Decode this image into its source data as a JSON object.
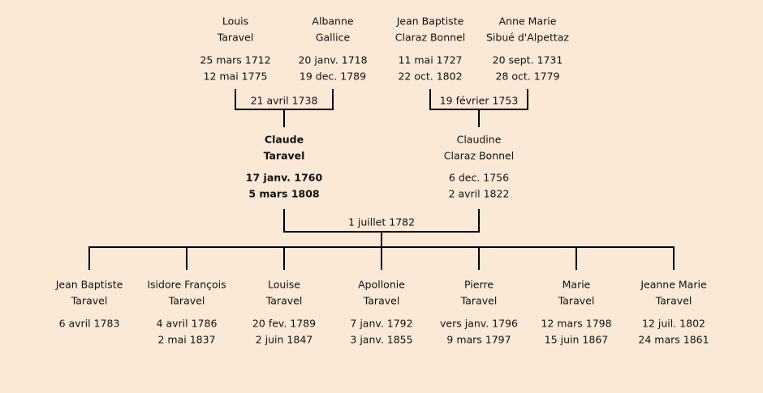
{
  "grandparents": [
    {
      "name": [
        "Louis",
        "Taravel"
      ],
      "dates": [
        "25 mars 1712",
        "12 mai 1775"
      ]
    },
    {
      "name": [
        "Albanne",
        "Gallice"
      ],
      "dates": [
        "20 janv. 1718",
        "19 dec. 1789"
      ]
    },
    {
      "name": [
        "Jean Baptiste",
        "Claraz Bonnel"
      ],
      "dates": [
        "11 mai 1727",
        "22 oct. 1802"
      ]
    },
    {
      "name": [
        "Anne Marie",
        "Sibué d'Alpettaz"
      ],
      "dates": [
        "20 sept. 1731",
        "28 oct. 1779"
      ]
    }
  ],
  "grandparent_marriages": [
    "21 avril 1738",
    "19 février 1753"
  ],
  "parents": [
    {
      "name": [
        "Claude",
        "Taravel"
      ],
      "dates": [
        "17 janv. 1760",
        "5 mars 1808"
      ]
    },
    {
      "name": [
        "Claudine",
        "Claraz Bonnel"
      ],
      "dates": [
        "6 dec. 1756",
        "2 avril 1822"
      ]
    }
  ],
  "parent_marriage": "1 juillet 1782",
  "children": [
    {
      "name": [
        "Jean Baptiste",
        "Taravel"
      ],
      "dates": [
        "6 avril 1783"
      ]
    },
    {
      "name": [
        "Isidore François",
        "Taravel"
      ],
      "dates": [
        "4 avril 1786",
        "2 mai 1837"
      ]
    },
    {
      "name": [
        "Louise",
        "Taravel"
      ],
      "dates": [
        "20 fev. 1789",
        "2 juin 1847"
      ]
    },
    {
      "name": [
        "Apollonie",
        "Taravel"
      ],
      "dates": [
        "7 janv. 1792",
        "3 janv. 1855"
      ]
    },
    {
      "name": [
        "Pierre",
        "Taravel"
      ],
      "dates": [
        "vers janv. 1796",
        "9 mars 1797"
      ]
    },
    {
      "name": [
        "Marie",
        "Taravel"
      ],
      "dates": [
        "12 mars 1798",
        "15 juin 1867"
      ]
    },
    {
      "name": [
        "Jeanne Marie",
        "Taravel"
      ],
      "dates": [
        "12 juil. 1802",
        "24 mars 1861"
      ]
    }
  ]
}
